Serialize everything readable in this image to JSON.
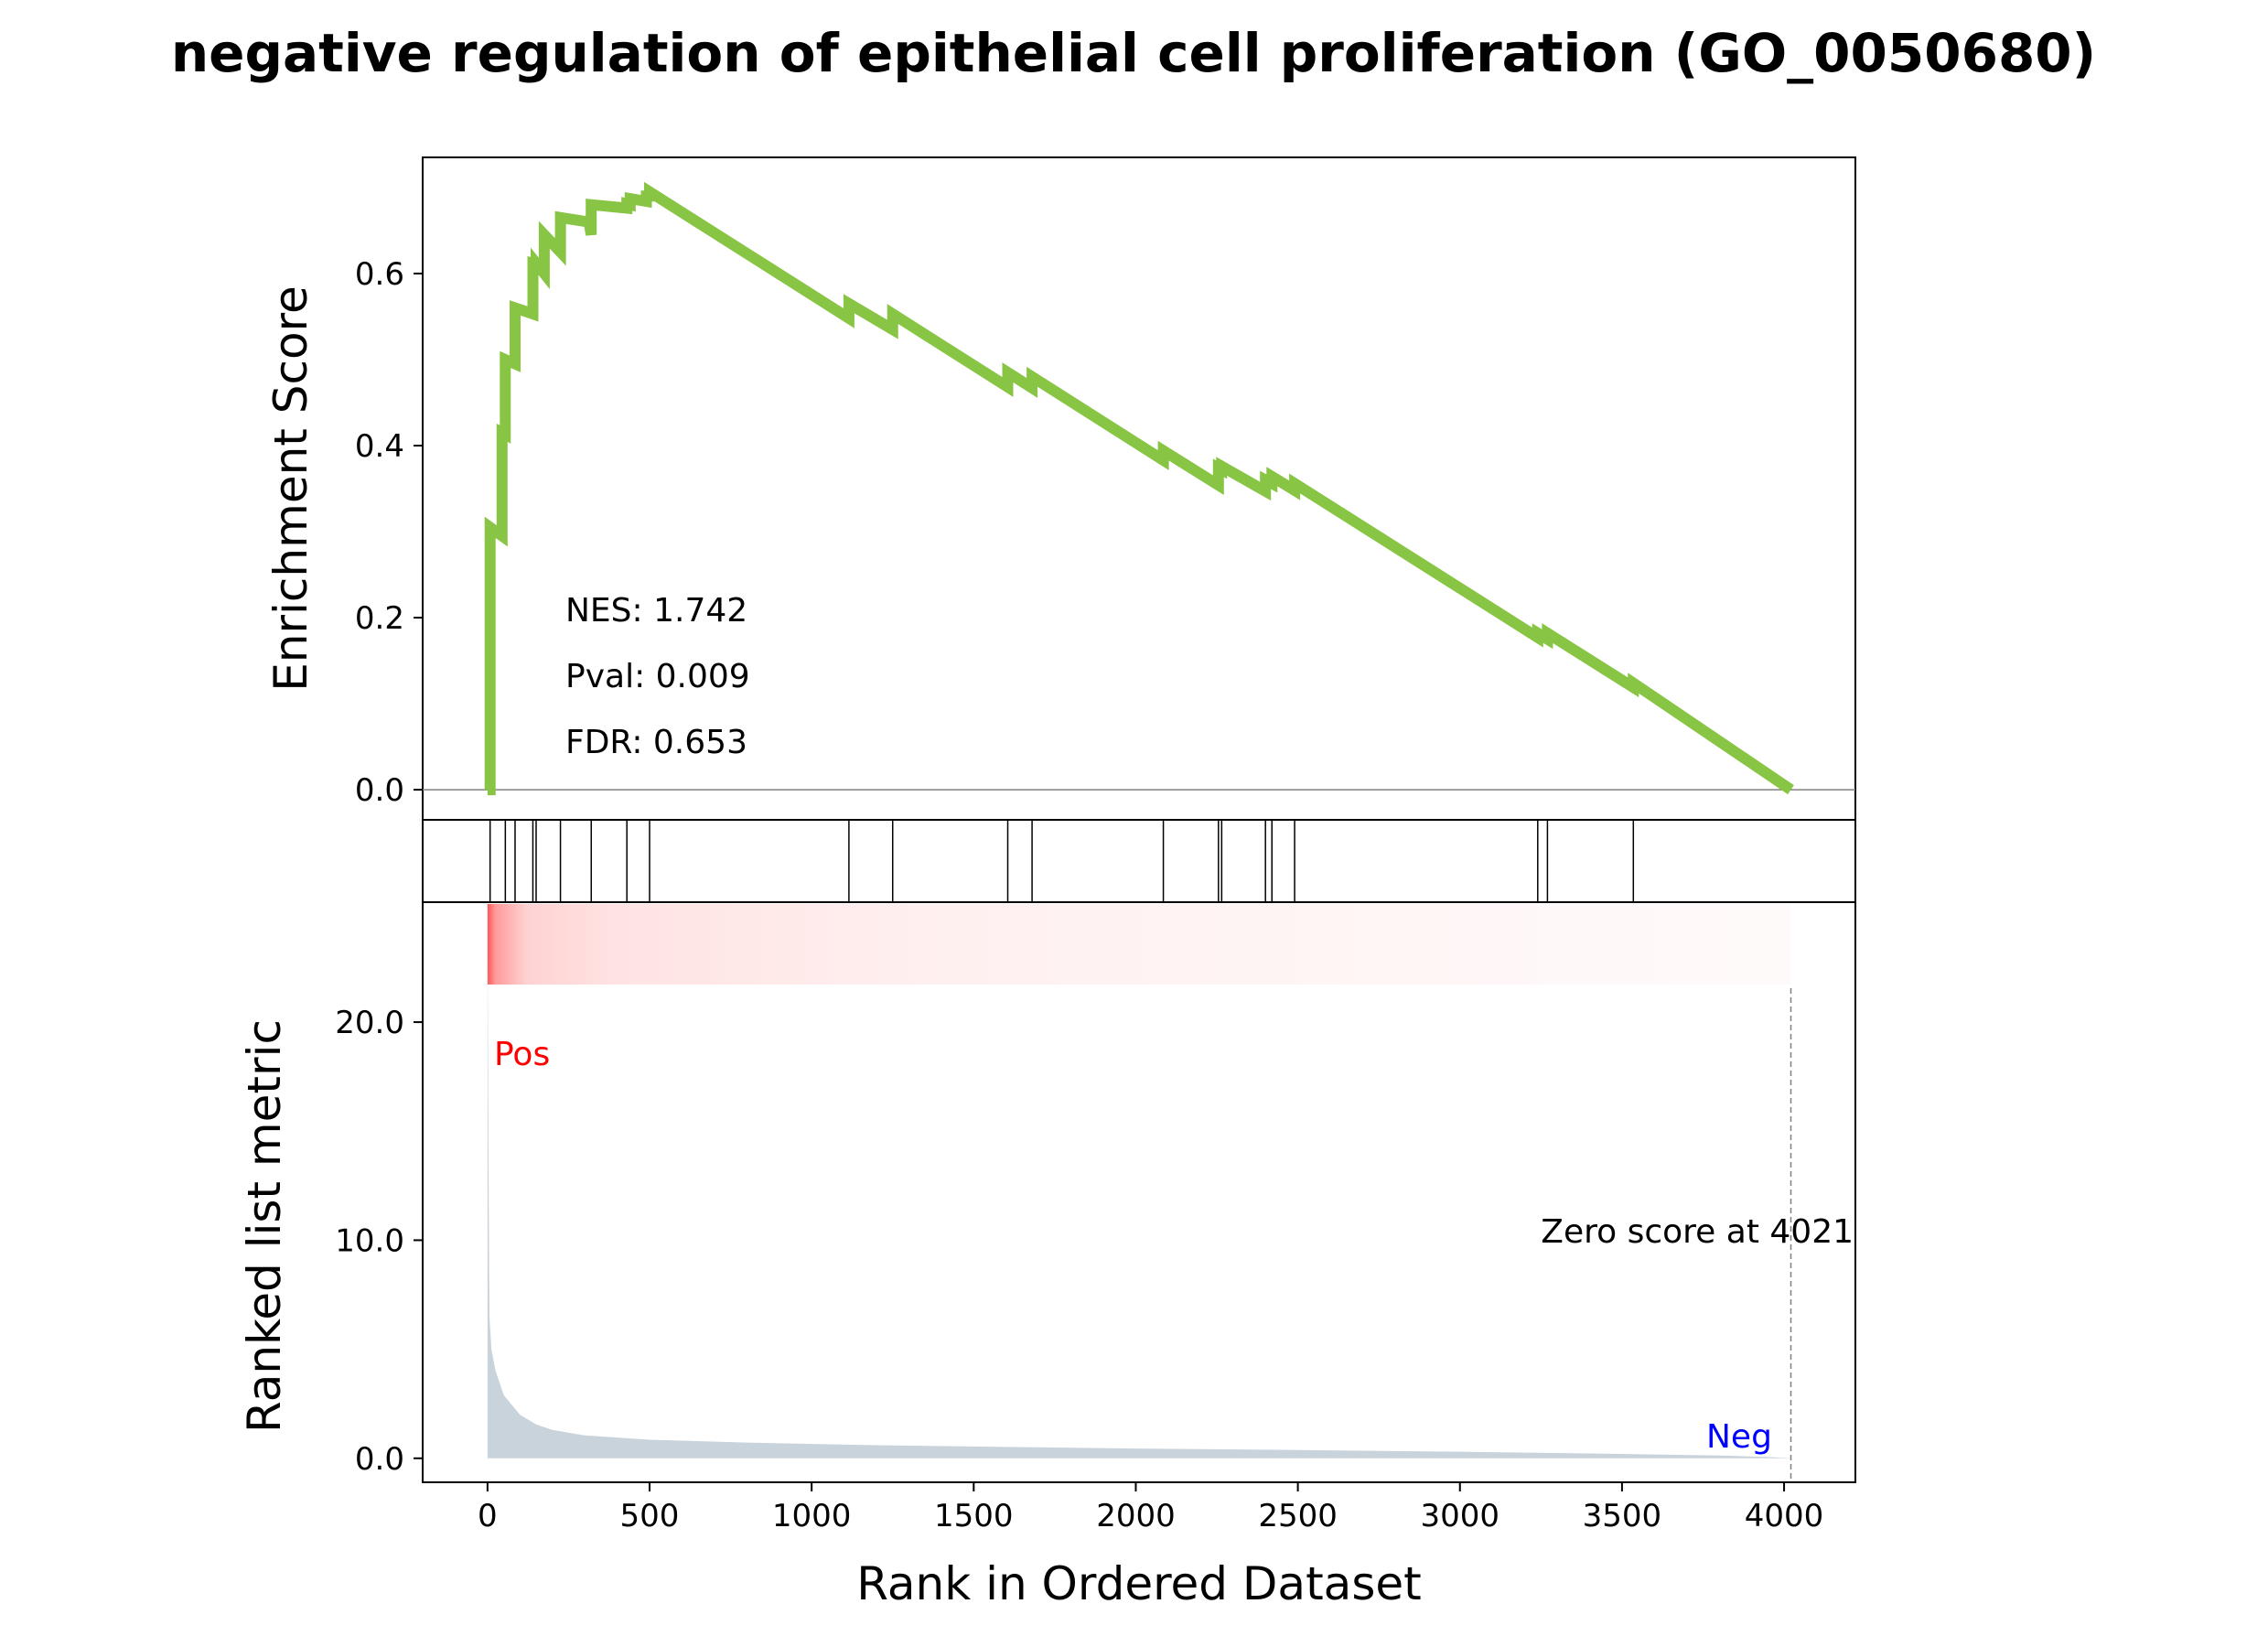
{
  "chart_data": {
    "type": "line",
    "title": "negative regulation of epithelial cell proliferation (GO_0050680)",
    "xlabel": "Rank in Ordered Dataset",
    "xlim": [
      -200,
      4220
    ],
    "x_ticks": [
      0,
      500,
      1000,
      1500,
      2000,
      2500,
      3000,
      3500,
      4000
    ],
    "top_panel": {
      "ylabel": "Enrichment Score",
      "ylim": [
        -0.035,
        0.735
      ],
      "y_ticks": [
        0.0,
        0.2,
        0.4,
        0.6
      ],
      "y_tick_labels": [
        "0.0",
        "0.2",
        "0.4",
        "0.6"
      ],
      "series": [
        {
          "color": "#88c544",
          "x": [
            0,
            8,
            8,
            45,
            45,
            55,
            55,
            85,
            85,
            140,
            140,
            150,
            150,
            175,
            175,
            225,
            225,
            310,
            310,
            320,
            320,
            430,
            430,
            440,
            440,
            490,
            490,
            500,
            500,
            1115,
            1115,
            1250,
            1250,
            1605,
            1605,
            1680,
            1680,
            2085,
            2085,
            2255,
            2255,
            2265,
            2265,
            2400,
            2400,
            2420,
            2420,
            2490,
            2490,
            3240,
            3240,
            3270,
            3270,
            3535,
            3535,
            4021
          ],
          "y": [
            0.0,
            0.0,
            0.305,
            0.295,
            0.415,
            0.413,
            0.5,
            0.495,
            0.56,
            0.553,
            0.612,
            0.611,
            0.612,
            0.6,
            0.645,
            0.625,
            0.665,
            0.66,
            0.666,
            0.645,
            0.68,
            0.676,
            0.681,
            0.68,
            0.687,
            0.684,
            0.69,
            0.69,
            0.695,
            0.548,
            0.565,
            0.535,
            0.553,
            0.468,
            0.485,
            0.467,
            0.48,
            0.383,
            0.394,
            0.354,
            0.374,
            0.372,
            0.376,
            0.347,
            0.36,
            0.356,
            0.364,
            0.348,
            0.356,
            0.177,
            0.182,
            0.175,
            0.182,
            0.119,
            0.124,
            0.0
          ]
        }
      ],
      "annotations": [
        "NES: 1.742",
        "Pval: 0.009",
        "FDR: 0.653"
      ]
    },
    "hits_panel": {
      "hit_ranks": [
        8,
        55,
        85,
        140,
        150,
        225,
        320,
        430,
        500,
        1115,
        1250,
        1605,
        1680,
        2085,
        2255,
        2265,
        2400,
        2420,
        2490,
        3240,
        3270,
        3535
      ]
    },
    "bottom_panel": {
      "ylabel": "Ranked list metric",
      "ylim": [
        -1.1,
        25.5
      ],
      "y_ticks": [
        0,
        10,
        20
      ],
      "y_tick_labels": [
        "0.0",
        "10.0",
        "20.0"
      ],
      "fill_color": "#c9d3dc",
      "x": [
        0,
        3,
        6,
        12,
        25,
        50,
        100,
        150,
        200,
        300,
        500,
        800,
        1200,
        1600,
        2000,
        2500,
        3000,
        3500,
        3800,
        3950,
        4000,
        4021
      ],
      "y": [
        24.0,
        14.0,
        6.5,
        5.0,
        4.0,
        2.9,
        2.0,
        1.55,
        1.3,
        1.05,
        0.85,
        0.72,
        0.6,
        0.52,
        0.45,
        0.38,
        0.3,
        0.2,
        0.13,
        0.06,
        0.02,
        0.0
      ],
      "pos_label": "Pos",
      "pos_color": "#ff0000",
      "neg_label": "Neg",
      "neg_color": "#0000ff",
      "zero_score_text": "Zero score at 4021",
      "zero_score_rank": 4021
    }
  }
}
